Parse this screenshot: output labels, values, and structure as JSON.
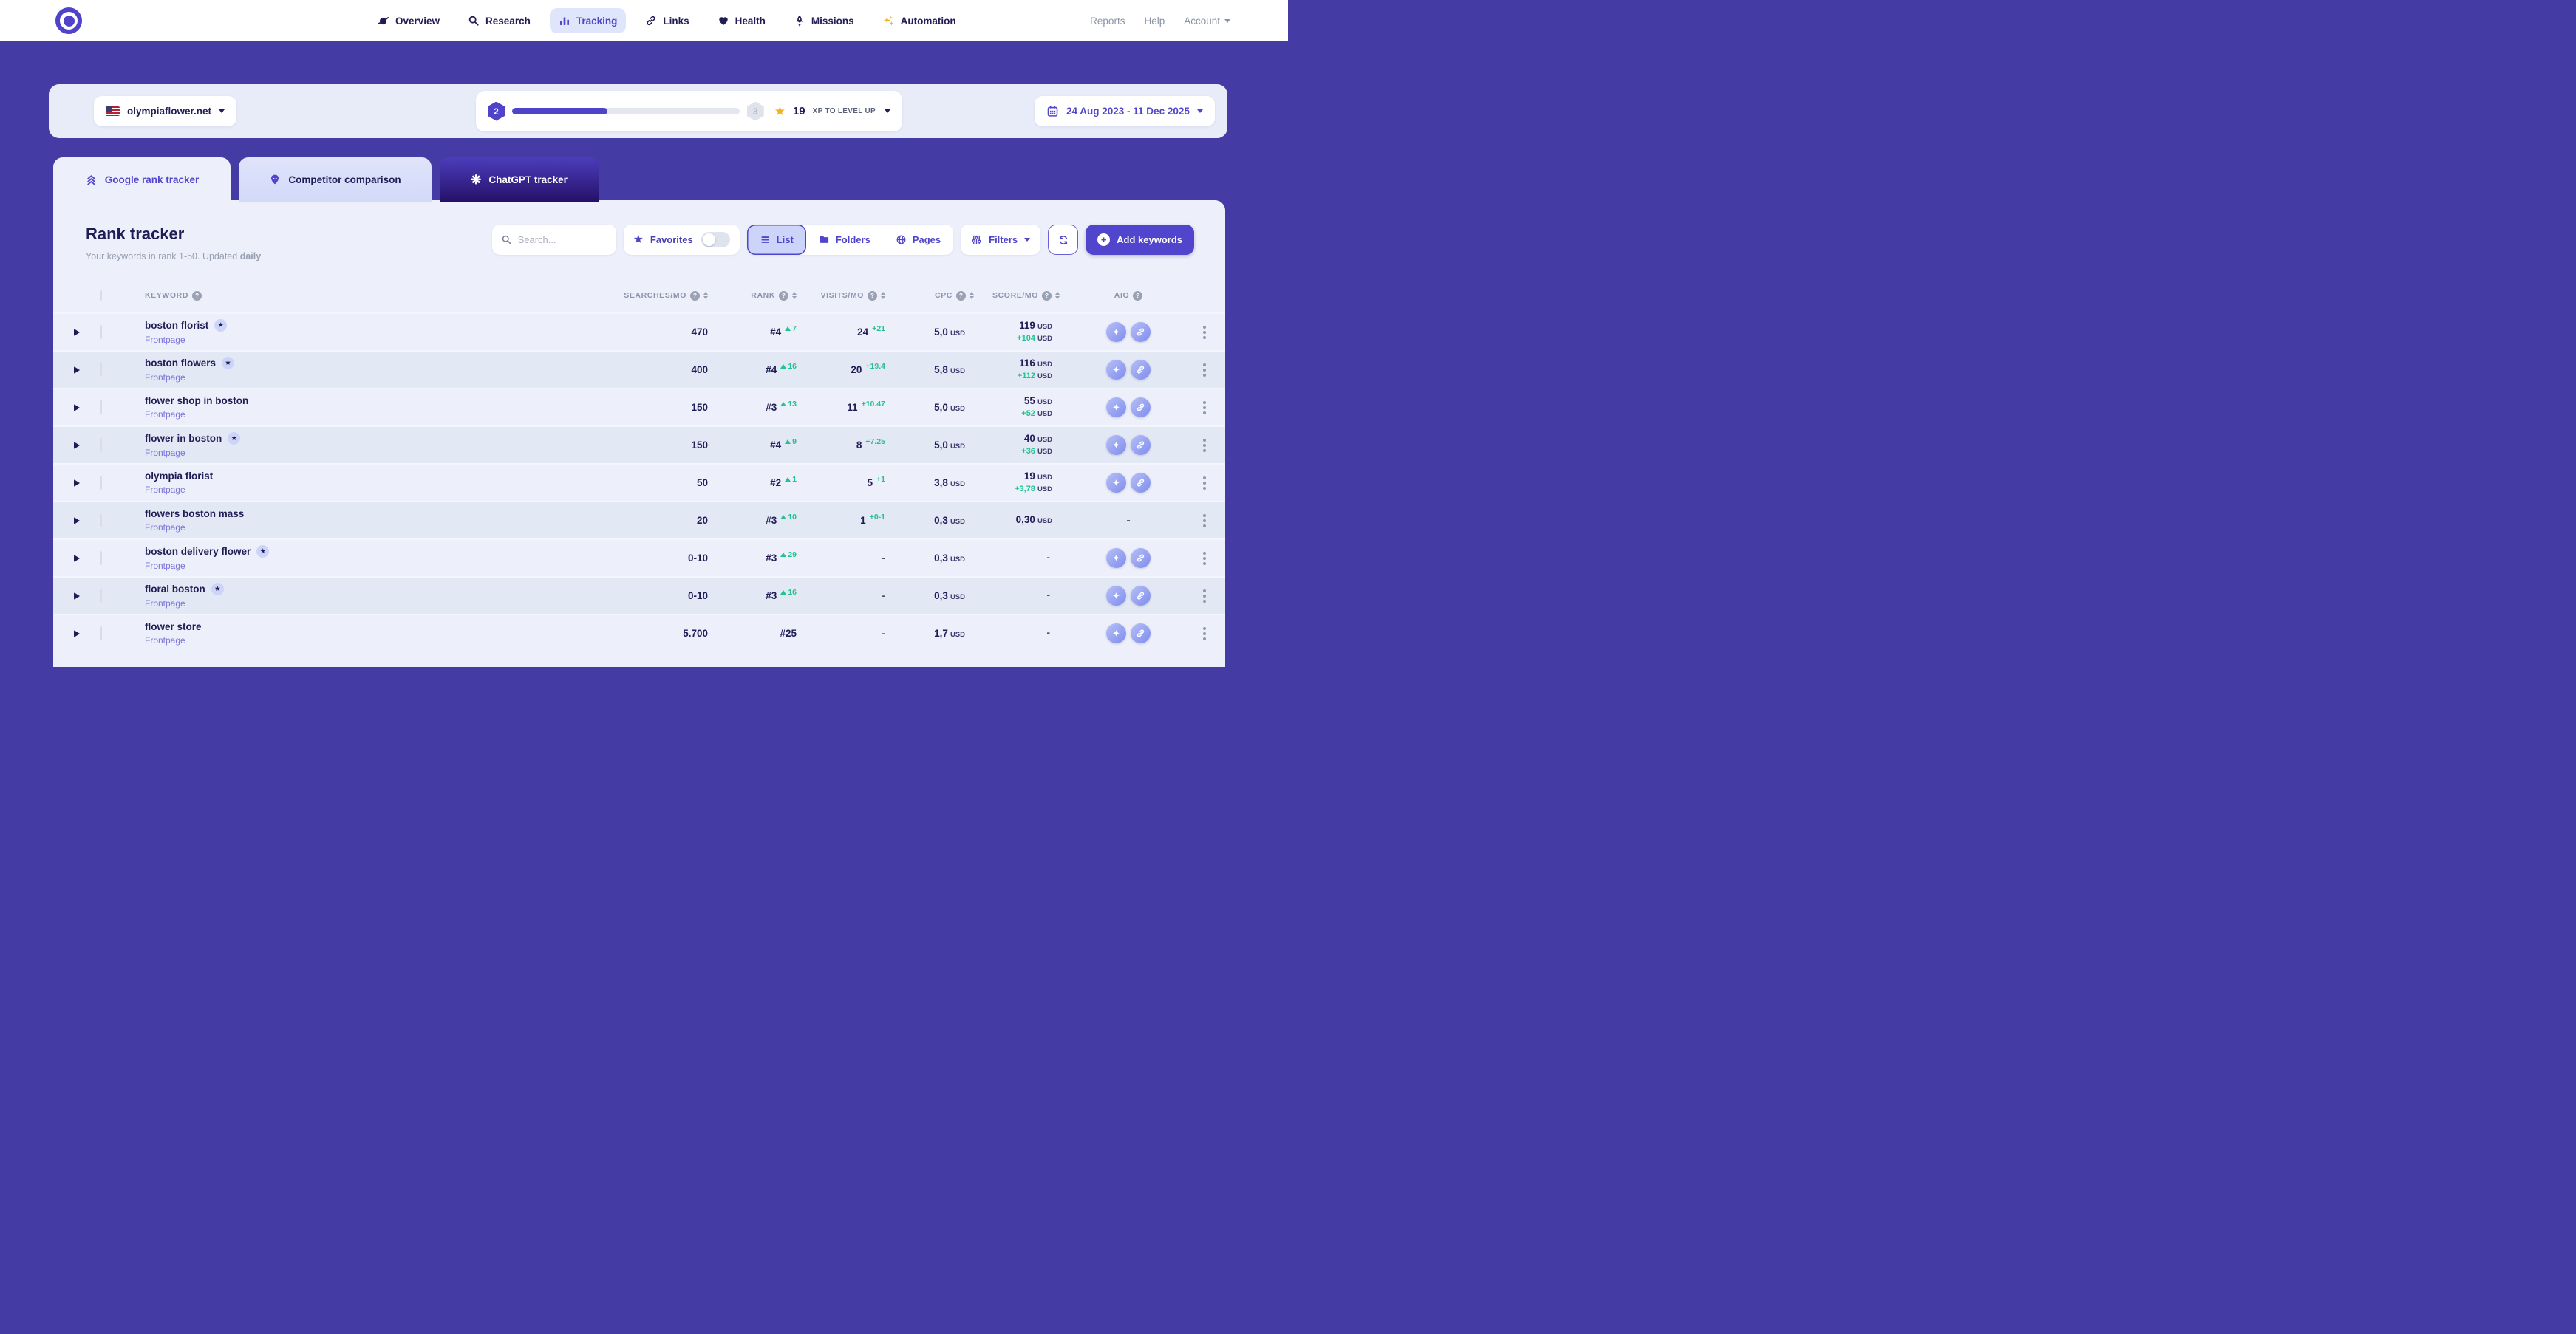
{
  "nav": {
    "items": [
      {
        "label": "Overview"
      },
      {
        "label": "Research"
      },
      {
        "label": "Tracking"
      },
      {
        "label": "Links"
      },
      {
        "label": "Health"
      },
      {
        "label": "Missions"
      },
      {
        "label": "Automation"
      }
    ],
    "reports": "Reports",
    "help": "Help",
    "account": "Account"
  },
  "subbar": {
    "domain": "olympiaflower.net",
    "xp": {
      "level_current": "2",
      "level_next": "3",
      "progress_pct": 42,
      "xp_value": "19",
      "xp_label": "XP TO LEVEL UP"
    },
    "date_range": "24 Aug 2023 - 11 Dec 2025"
  },
  "tabs": [
    {
      "label": "Google rank tracker"
    },
    {
      "label": "Competitor comparison"
    },
    {
      "label": "ChatGPT tracker"
    }
  ],
  "tracker": {
    "title": "Rank tracker",
    "subtitle_prefix": "Your keywords in rank 1-50. Updated ",
    "subtitle_bold": "daily",
    "search_placeholder": "Search...",
    "favorites_label": "Favorites",
    "views": [
      {
        "label": "List"
      },
      {
        "label": "Folders"
      },
      {
        "label": "Pages"
      }
    ],
    "filters_label": "Filters",
    "add_keywords_label": "Add keywords"
  },
  "table": {
    "currency": "USD",
    "empty_placeholder": "-",
    "headers": {
      "keyword": "KEYWORD",
      "searches": "SEARCHES/MO",
      "rank": "RANK",
      "visits": "VISITS/MO",
      "cpc": "CPC",
      "score": "SCORE/MO",
      "aio": "AIO"
    },
    "rows": [
      {
        "keyword": "boston florist",
        "starred": true,
        "page": "Frontpage",
        "searches": "470",
        "rank": "#4",
        "rank_change": "7",
        "visits": "24",
        "visits_change": "+21",
        "cpc": "5,0",
        "score": "119",
        "score_change": "+104",
        "aio": true
      },
      {
        "keyword": "boston flowers",
        "starred": true,
        "page": "Frontpage",
        "searches": "400",
        "rank": "#4",
        "rank_change": "16",
        "visits": "20",
        "visits_change": "+19.4",
        "cpc": "5,8",
        "score": "116",
        "score_change": "+112",
        "aio": true
      },
      {
        "keyword": "flower shop in boston",
        "starred": false,
        "page": "Frontpage",
        "searches": "150",
        "rank": "#3",
        "rank_change": "13",
        "visits": "11",
        "visits_change": "+10.47",
        "cpc": "5,0",
        "score": "55",
        "score_change": "+52",
        "aio": true
      },
      {
        "keyword": "flower in boston",
        "starred": true,
        "page": "Frontpage",
        "searches": "150",
        "rank": "#4",
        "rank_change": "9",
        "visits": "8",
        "visits_change": "+7.25",
        "cpc": "5,0",
        "score": "40",
        "score_change": "+36",
        "aio": true
      },
      {
        "keyword": "olympia florist",
        "starred": false,
        "page": "Frontpage",
        "searches": "50",
        "rank": "#2",
        "rank_change": "1",
        "visits": "5",
        "visits_change": "+1",
        "cpc": "3,8",
        "score": "19",
        "score_change": "+3,78",
        "aio": true
      },
      {
        "keyword": "flowers boston mass",
        "starred": false,
        "page": "Frontpage",
        "searches": "20",
        "rank": "#3",
        "rank_change": "10",
        "visits": "1",
        "visits_change": "+0-1",
        "cpc": "0,3",
        "score": "0,30",
        "score_change": null,
        "aio": false
      },
      {
        "keyword": "boston delivery flower",
        "starred": true,
        "page": "Frontpage",
        "searches": "0-10",
        "rank": "#3",
        "rank_change": "29",
        "visits": "-",
        "visits_change": null,
        "cpc": "0,3",
        "score": "-",
        "score_change": null,
        "aio": true
      },
      {
        "keyword": "floral boston",
        "starred": true,
        "page": "Frontpage",
        "searches": "0-10",
        "rank": "#3",
        "rank_change": "16",
        "visits": "-",
        "visits_change": null,
        "cpc": "0,3",
        "score": "-",
        "score_change": null,
        "aio": true
      },
      {
        "keyword": "flower store",
        "starred": false,
        "page": "Frontpage",
        "searches": "5.700",
        "rank": "#25",
        "rank_change": null,
        "visits": "-",
        "visits_change": null,
        "cpc": "1,7",
        "score": "-",
        "score_change": null,
        "aio": true
      }
    ]
  },
  "colors": {
    "accent": "#5145cd",
    "navy": "#201c55",
    "green": "#25c291",
    "page_bg": "#453ba4"
  }
}
